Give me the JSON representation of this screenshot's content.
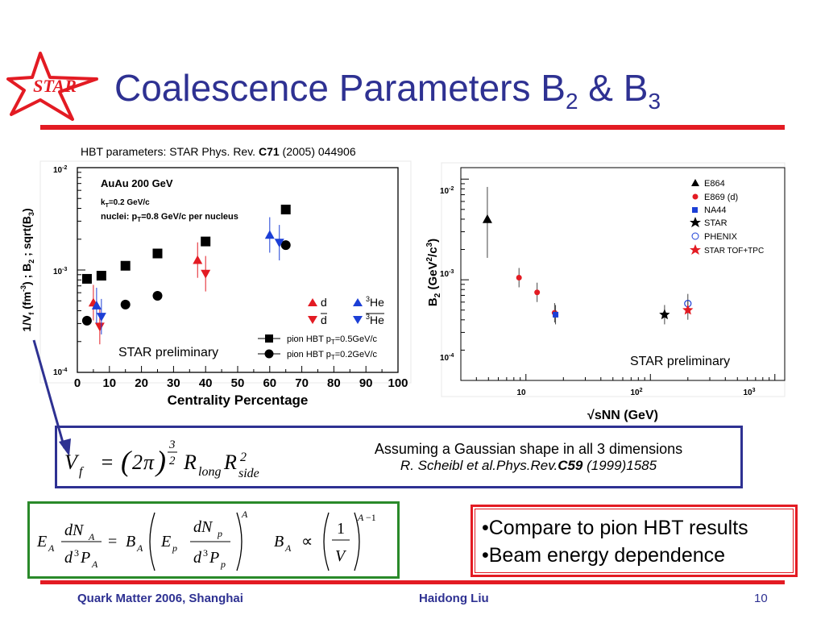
{
  "logo": {
    "text": "STAR",
    "color": "#e31b23"
  },
  "title": {
    "main": "Coalescence Parameters B",
    "sub1": "2",
    "amp": " & B",
    "sub2": "3"
  },
  "hbt_ref": {
    "prefix": "HBT parameters: STAR Phys. Rev. ",
    "bold": "C71",
    "suffix": " (2005) 044906"
  },
  "left_chart": {
    "ylabel": "1/V_f (fm^-3) ; B_2 ; sqrt(B_3)",
    "xlabel": "Centrality Percentage",
    "annotation1": "AuAu 200 GeV",
    "annotation2": "kT=0.2 GeV/c",
    "annotation3": "nuclei: pT=0.8 GeV/c per nucleus",
    "preliminary": "STAR preliminary",
    "yticks": [
      "10-2",
      "10-3",
      "10-4"
    ],
    "xticks": [
      "0",
      "10",
      "20",
      "30",
      "40",
      "50",
      "60",
      "70",
      "80",
      "90",
      "100"
    ],
    "legend": {
      "d": "d",
      "dbar": "d",
      "he3": "3He",
      "he3bar": "3He",
      "pion05": "pion HBT pT=0.5GeV/c",
      "pion02": "pion HBT pT=0.2GeV/c"
    }
  },
  "right_chart": {
    "ylabel": "B2 (GeV2/c3)",
    "xlabel": "√sNN (GeV)",
    "preliminary": "STAR preliminary",
    "yticks": [
      "10-2",
      "10-3",
      "10-4"
    ],
    "xticks": [
      "10",
      "102",
      "103"
    ],
    "legend": [
      "E864",
      "E869 (d)",
      "NA44",
      "STAR",
      "PHENIX",
      "STAR TOF+TPC"
    ]
  },
  "chart_data": [
    {
      "type": "scatter",
      "xlabel": "Centrality Percentage",
      "ylabel": "1/V_f (fm^-3) ; B_2 ; sqrt(B_3)",
      "xlim": [
        0,
        100
      ],
      "ylim": [
        0.0001,
        0.01
      ],
      "yscale": "log",
      "series": [
        {
          "name": "pion HBT pT=0.5GeV/c",
          "marker": "square",
          "x": [
            3,
            7.5,
            15,
            25,
            40,
            65
          ],
          "y": [
            0.00082,
            0.00088,
            0.0011,
            0.00145,
            0.0019,
            0.0039
          ]
        },
        {
          "name": "pion HBT pT=0.2GeV/c",
          "marker": "circle",
          "x": [
            3,
            15,
            25,
            65
          ],
          "y": [
            0.00032,
            0.00046,
            0.00056,
            0.00175
          ]
        },
        {
          "name": "d",
          "marker": "triangle-up",
          "x": [
            5,
            37.5
          ],
          "y": [
            0.00048,
            0.00125
          ]
        },
        {
          "name": "d",
          "marker": "triangle-down",
          "x": [
            7,
            40
          ],
          "y": [
            0.00028,
            0.00092
          ]
        },
        {
          "name": "3He",
          "marker": "triangle-up",
          "x": [
            6,
            60
          ],
          "y": [
            0.00045,
            0.0022
          ]
        },
        {
          "name": "3He",
          "marker": "triangle-down",
          "x": [
            7.5,
            63
          ],
          "y": [
            0.00035,
            0.00185
          ]
        }
      ]
    },
    {
      "type": "scatter",
      "xlabel": "√sNN (GeV)",
      "ylabel": "B2 (GeV2/c3)",
      "xlim": [
        3,
        1200
      ],
      "ylim": [
        0.0001,
        0.013
      ],
      "xscale": "log",
      "yscale": "log",
      "series": [
        {
          "name": "E864",
          "marker": "triangle-up",
          "x": [
            4.9
          ],
          "y": [
            0.004
          ]
        },
        {
          "name": "E869 (d)",
          "marker": "circle",
          "x": [
            8.8,
            12.3,
            17
          ],
          "y": [
            0.00105,
            0.00075,
            0.00047
          ]
        },
        {
          "name": "NA44",
          "marker": "square",
          "x": [
            17.3
          ],
          "y": [
            0.00045
          ]
        },
        {
          "name": "STAR",
          "marker": "star",
          "x": [
            130
          ],
          "y": [
            0.00045
          ]
        },
        {
          "name": "PHENIX",
          "marker": "open-circle",
          "x": [
            200
          ],
          "y": [
            0.00058
          ]
        },
        {
          "name": "STAR TOF+TPC",
          "marker": "star",
          "x": [
            200
          ],
          "y": [
            0.0005
          ]
        }
      ]
    }
  ],
  "assumption": {
    "line1": "Assuming a Gaussian shape in all 3 dimensions",
    "line2a": "R. Scheibl et al.Phys.Rev.",
    "line2b": "C59",
    "line2c": " (1999)1585"
  },
  "bullets": [
    "•Compare to pion HBT results",
    "•Beam energy dependence"
  ],
  "footer": {
    "left": "Quark Matter 2006, Shanghai",
    "center": "Haidong Liu",
    "page": "10"
  }
}
